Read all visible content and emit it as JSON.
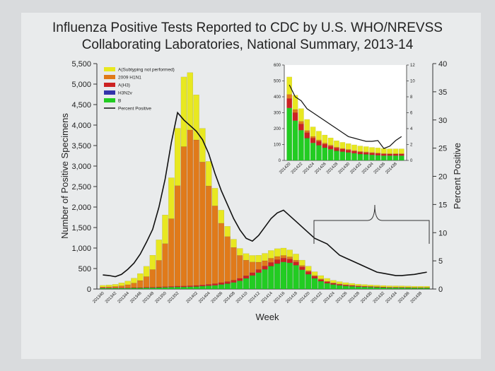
{
  "chart_data": [
    {
      "type": "bar",
      "title": [
        "Influenza Positive Tests Reported to CDC by U.S. WHO/NREVSS",
        "Collaborating Laboratories, National Summary, 2013-14"
      ],
      "xlabel": "Week",
      "ylabel": "Number of Positive Specimens",
      "ylabel_right": "Percent Positive",
      "stacked": true,
      "ylim": [
        0,
        5500
      ],
      "ylim_right": [
        0,
        40
      ],
      "yticks": [
        "0",
        "500",
        "1,000",
        "1,500",
        "2,000",
        "2,500",
        "3,000",
        "3,500",
        "4,000",
        "4,500",
        "5,000",
        "5,500"
      ],
      "yticks_right": [
        "0",
        "5",
        "10",
        "15",
        "20",
        "25",
        "30",
        "35",
        "40"
      ],
      "x": [
        "201340",
        "201341",
        "201342",
        "201343",
        "201344",
        "201345",
        "201346",
        "201347",
        "201348",
        "201349",
        "201350",
        "201351",
        "201352",
        "201353",
        "201401",
        "201402",
        "201403",
        "201404",
        "201405",
        "201406",
        "201407",
        "201408",
        "201409",
        "201410",
        "201411",
        "201412",
        "201413",
        "201414",
        "201415",
        "201416",
        "201417",
        "201418",
        "201419",
        "201420",
        "201421",
        "201422",
        "201423",
        "201424",
        "201425",
        "201426",
        "201427",
        "201428",
        "201429",
        "201430",
        "201431",
        "201432",
        "201433",
        "201434",
        "201435",
        "201436",
        "201437",
        "201438",
        "201439"
      ],
      "xtick_labels": [
        "201340",
        "201342",
        "201344",
        "201346",
        "201348",
        "201350",
        "201352",
        "201402",
        "201404",
        "201406",
        "201408",
        "201410",
        "201412",
        "201414",
        "201416",
        "201418",
        "201420",
        "201422",
        "201424",
        "201426",
        "201428",
        "201430",
        "201432",
        "201434",
        "201436",
        "201438"
      ],
      "series": [
        {
          "name": "B",
          "color": "#22cc22",
          "values": [
            20,
            20,
            20,
            20,
            20,
            25,
            25,
            30,
            30,
            35,
            40,
            45,
            50,
            50,
            55,
            60,
            70,
            80,
            90,
            110,
            130,
            160,
            200,
            260,
            330,
            400,
            480,
            560,
            620,
            660,
            640,
            580,
            470,
            360,
            260,
            190,
            140,
            110,
            90,
            75,
            65,
            55,
            50,
            45,
            40,
            35,
            30,
            30,
            30,
            28,
            25,
            25,
            25
          ]
        },
        {
          "name": "A(H3)",
          "color": "#cc2222",
          "values": [
            10,
            10,
            10,
            10,
            10,
            10,
            12,
            14,
            15,
            16,
            18,
            20,
            22,
            24,
            26,
            28,
            30,
            35,
            40,
            45,
            50,
            55,
            60,
            65,
            70,
            75,
            80,
            90,
            95,
            95,
            90,
            80,
            70,
            60,
            50,
            40,
            35,
            30,
            25,
            22,
            20,
            18,
            16,
            15,
            14,
            13,
            12,
            12,
            12,
            11,
            10,
            10,
            10
          ]
        },
        {
          "name": "H3N2v",
          "color": "#3333aa",
          "values": [
            0,
            0,
            0,
            0,
            0,
            0,
            0,
            0,
            0,
            0,
            0,
            0,
            0,
            0,
            0,
            0,
            0,
            0,
            0,
            0,
            0,
            0,
            0,
            0,
            0,
            0,
            0,
            0,
            0,
            0,
            0,
            0,
            0,
            0,
            0,
            0,
            0,
            0,
            0,
            0,
            0,
            0,
            0,
            0,
            0,
            0,
            0,
            0,
            0,
            0,
            0,
            0,
            0
          ]
        },
        {
          "name": "2009 H1N1",
          "color": "#e07a1a",
          "values": [
            20,
            25,
            35,
            50,
            75,
            110,
            170,
            260,
            430,
            650,
            1050,
            1650,
            2450,
            3400,
            3800,
            3550,
            3000,
            2400,
            1900,
            1450,
            1100,
            800,
            560,
            380,
            260,
            180,
            130,
            100,
            80,
            65,
            55,
            45,
            35,
            28,
            22,
            18,
            15,
            12,
            10,
            9,
            8,
            7,
            6,
            5,
            5,
            4,
            4,
            4,
            3,
            3,
            3,
            3,
            3
          ]
        },
        {
          "name": "A(Subtyping not performed)",
          "color": "#e8e820",
          "values": [
            40,
            45,
            50,
            70,
            90,
            120,
            170,
            250,
            350,
            500,
            700,
            1000,
            1400,
            1700,
            1400,
            1100,
            820,
            600,
            430,
            320,
            250,
            200,
            170,
            160,
            160,
            170,
            180,
            190,
            190,
            180,
            170,
            150,
            130,
            110,
            90,
            80,
            70,
            60,
            55,
            50,
            45,
            40,
            38,
            36,
            35,
            34,
            33,
            32,
            32,
            31,
            30,
            30,
            30
          ]
        }
      ],
      "percent_positive": [
        2.5,
        2.4,
        2.2,
        2.6,
        3.5,
        4.6,
        6.2,
        8.3,
        10.6,
        14.5,
        19.5,
        26.0,
        31.3,
        30.0,
        29.0,
        28.0,
        26.5,
        24.0,
        20.5,
        17.5,
        15.0,
        12.5,
        10.5,
        9.0,
        8.5,
        9.5,
        11.0,
        12.5,
        13.5,
        14.0,
        13.0,
        12.0,
        11.0,
        10.0,
        9.0,
        8.5,
        8.0,
        7.0,
        6.0,
        5.5,
        5.0,
        4.5,
        4.0,
        3.5,
        3.0,
        2.8,
        2.6,
        2.4,
        2.4,
        2.5,
        2.6,
        2.8,
        3.0
      ],
      "legend": [
        "A(Subtyping not performed)",
        "2009 H1N1",
        "A(H3)",
        "H3N2v",
        "B",
        "Percent Positive"
      ],
      "line_name": "Percent Positive",
      "legend_position": "top-left",
      "grid": false
    },
    {
      "type": "bar",
      "role": "inset",
      "stacked": true,
      "ylim": [
        0,
        600
      ],
      "ylim_right": [
        0,
        12
      ],
      "yticks": [
        "0",
        "100",
        "200",
        "300",
        "400",
        "500",
        "600"
      ],
      "yticks_right": [
        "0",
        "2",
        "4",
        "6",
        "8",
        "10",
        "12"
      ],
      "x": [
        "201420",
        "201421",
        "201422",
        "201423",
        "201424",
        "201425",
        "201426",
        "201427",
        "201428",
        "201429",
        "201430",
        "201431",
        "201432",
        "201433",
        "201434",
        "201435",
        "201436",
        "201437",
        "201438",
        "201439"
      ],
      "xtick_labels": [
        "201420",
        "201422",
        "201424",
        "201426",
        "201428",
        "201430",
        "201432",
        "201434",
        "201436",
        "201438"
      ],
      "series": [
        {
          "name": "B",
          "color": "#22cc22",
          "values": [
            330,
            250,
            190,
            140,
            110,
            95,
            80,
            70,
            60,
            55,
            50,
            45,
            40,
            38,
            35,
            32,
            30,
            30,
            30,
            30
          ]
        },
        {
          "name": "A(H3)",
          "color": "#cc2222",
          "values": [
            60,
            50,
            40,
            35,
            30,
            25,
            22,
            20,
            18,
            16,
            15,
            14,
            13,
            12,
            12,
            12,
            11,
            10,
            10,
            10
          ]
        },
        {
          "name": "2009 H1N1",
          "color": "#e07a1a",
          "values": [
            25,
            20,
            16,
            13,
            11,
            9,
            8,
            7,
            6,
            5,
            5,
            4,
            4,
            4,
            3,
            3,
            3,
            3,
            3,
            3
          ]
        },
        {
          "name": "A(Subtyping not performed)",
          "color": "#e8e820",
          "values": [
            110,
            90,
            80,
            70,
            60,
            55,
            50,
            45,
            40,
            38,
            36,
            35,
            34,
            33,
            32,
            32,
            31,
            30,
            30,
            30
          ]
        }
      ],
      "percent_positive": [
        9.5,
        8.0,
        7.5,
        6.5,
        6.0,
        5.5,
        5.0,
        4.5,
        4.0,
        3.5,
        3.0,
        2.8,
        2.6,
        2.4,
        2.4,
        2.5,
        1.5,
        1.8,
        2.5,
        3.0
      ]
    }
  ]
}
